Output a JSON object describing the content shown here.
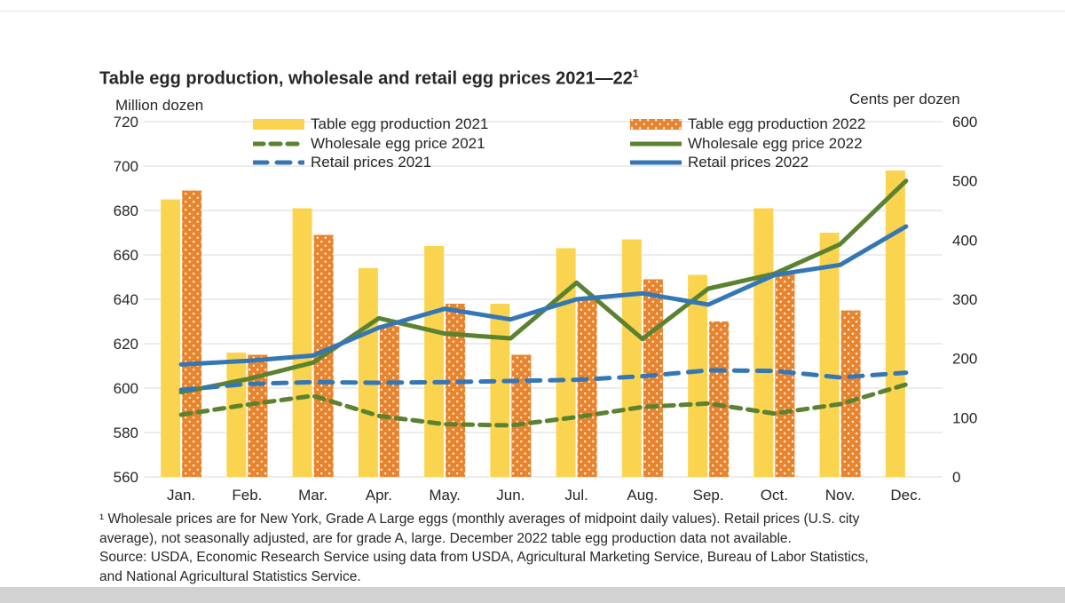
{
  "title": {
    "text": "Table egg production, wholesale and retail egg prices 2021—22",
    "superscript": "1"
  },
  "axes": {
    "left_unit_label": "Million dozen",
    "right_unit_label": "Cents per dozen"
  },
  "footnote": {
    "lines": [
      "¹ Wholesale prices are for New York, Grade A Large eggs (monthly averages of midpoint daily values). Retail prices (U.S. city",
      "average), not seasonally adjusted, are for grade A, large. December 2022 table egg production data not available.",
      "Source: USDA, Economic Research Service using data from USDA, Agricultural Marketing Service, Bureau of Labor Statistics,",
      "and National Agricultural Statistics Service."
    ]
  },
  "chart_data": {
    "type": "bar+line combo",
    "title": "Table egg production, wholesale and retail egg prices 2021—22",
    "grid": true,
    "legend_position": "top",
    "categories": [
      "Jan.",
      "Feb.",
      "Mar.",
      "Apr.",
      "May.",
      "Jun.",
      "Jul.",
      "Aug.",
      "Sep.",
      "Oct.",
      "Nov.",
      "Dec."
    ],
    "left_axis": {
      "label": "Million dozen",
      "min": 560,
      "max": 720,
      "step": 20,
      "ticks": [
        720,
        700,
        680,
        660,
        640,
        620,
        600,
        580,
        560
      ]
    },
    "right_axis": {
      "label": "Cents per dozen",
      "min": 0,
      "max": 600,
      "step": 100,
      "ticks": [
        600,
        500,
        400,
        300,
        200,
        100,
        0
      ]
    },
    "series": [
      {
        "name": "Table egg production 2021",
        "type": "bar",
        "axis": "left",
        "color": "#FBD44F",
        "values": [
          685,
          616,
          681,
          654,
          664,
          638,
          663,
          667,
          651,
          681,
          670,
          698
        ]
      },
      {
        "name": "Table egg production 2022",
        "type": "bar",
        "axis": "left",
        "color": "#E8832E",
        "fill_pattern": "white-dots",
        "values": [
          689,
          615,
          669,
          628,
          638,
          615,
          640,
          649,
          630,
          652,
          635,
          null
        ]
      },
      {
        "name": "Wholesale egg price 2021",
        "type": "line",
        "axis": "right",
        "color": "#5B8230",
        "line_style": "dashed",
        "dasharray": "11 8",
        "values": [
          105,
          122,
          137,
          103,
          89,
          87,
          101,
          118,
          124,
          107,
          123,
          156
        ]
      },
      {
        "name": "Wholesale egg price 2022",
        "type": "line",
        "axis": "right",
        "color": "#5B8230",
        "line_style": "solid",
        "values": [
          143,
          165,
          193,
          268,
          242,
          234,
          328,
          233,
          318,
          343,
          393,
          500
        ]
      },
      {
        "name": "Retail prices 2021",
        "type": "line",
        "axis": "right",
        "color": "#3577B5",
        "line_style": "dashed",
        "dasharray": "15 11",
        "values": [
          147,
          157,
          160,
          159,
          160,
          162,
          164,
          170,
          180,
          179,
          168,
          176
        ]
      },
      {
        "name": "Retail prices 2022",
        "type": "line",
        "axis": "right",
        "color": "#3577B5",
        "line_style": "solid",
        "values": [
          190,
          196,
          205,
          252,
          284,
          266,
          300,
          310,
          291,
          341,
          358,
          423
        ]
      }
    ]
  }
}
